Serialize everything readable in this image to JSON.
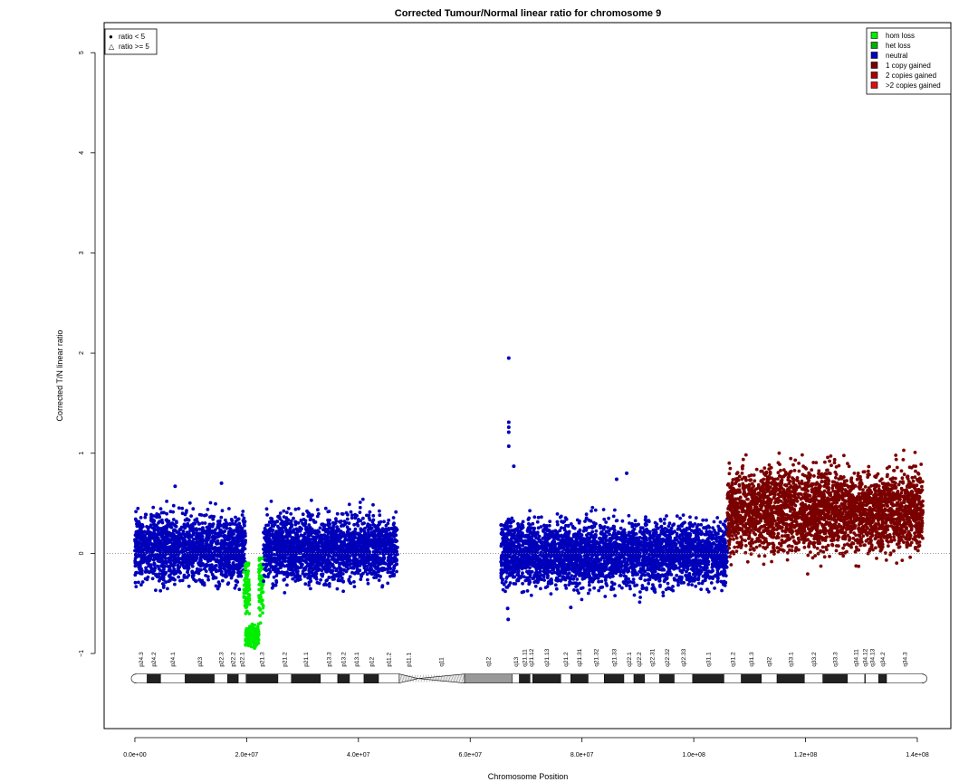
{
  "chart_data": {
    "type": "scatter",
    "title": "Corrected Tumour/Normal linear ratio for chromosome  9",
    "xlabel": "Chromosome Position",
    "ylabel": "Corrected T/N linear ratio",
    "xlim": [
      -5500000,
      146000000
    ],
    "ylim": [
      -1.75,
      5.3
    ],
    "x_ticks": [
      0,
      20000000,
      40000000,
      60000000,
      80000000,
      100000000,
      120000000,
      140000000
    ],
    "x_tick_labels": [
      "0.0e+00",
      "2.0e+07",
      "4.0e+07",
      "6.0e+07",
      "8.0e+07",
      "1.0e+08",
      "1.2e+08",
      "1.4e+08"
    ],
    "y_ticks": [
      -1,
      0,
      1,
      2,
      3,
      4,
      5
    ],
    "y_tick_labels": [
      "−1",
      "0",
      "1",
      "2",
      "3",
      "4",
      "5"
    ],
    "reference_line_y": 0,
    "shape_legend": {
      "placement": "top-left",
      "entries": [
        {
          "symbol": "●",
          "label": "ratio < 5"
        },
        {
          "symbol": "△",
          "label": "ratio >= 5"
        }
      ]
    },
    "legend": {
      "placement": "top-right",
      "entries": [
        {
          "label": "hom loss",
          "color": "#00ee00"
        },
        {
          "label": "het loss",
          "color": "#00b000"
        },
        {
          "label": "neutral",
          "color": "#0000bb"
        },
        {
          "label": "1 copy gained",
          "color": "#7a0000"
        },
        {
          "label": "2 copies gained",
          "color": "#aa0000"
        },
        {
          "label": ">2 copies gained",
          "color": "#dd1010"
        }
      ]
    },
    "series": [
      {
        "name": "neutral",
        "color": "#0000bb",
        "x_start": 0,
        "x_end": 19800000,
        "mean": 0.05,
        "spread": 0.16,
        "min": -0.45,
        "max": 0.7
      },
      {
        "name": "hom loss",
        "color": "#00ee00",
        "x_start": 19500000,
        "x_end": 20500000,
        "mean": -0.35,
        "spread": 0.15,
        "min": -0.62,
        "max": -0.1
      },
      {
        "name": "hom loss",
        "color": "#00ee00",
        "x_start": 19800000,
        "x_end": 22200000,
        "mean": -0.82,
        "spread": 0.05,
        "min": -0.95,
        "max": -0.65
      },
      {
        "name": "hom loss",
        "color": "#00ee00",
        "x_start": 22200000,
        "x_end": 23000000,
        "mean": -0.3,
        "spread": 0.15,
        "min": -0.7,
        "max": -0.05
      },
      {
        "name": "neutral",
        "color": "#0000bb",
        "x_start": 23000000,
        "x_end": 47000000,
        "mean": 0.05,
        "spread": 0.16,
        "min": -0.5,
        "max": 0.65
      },
      {
        "name": "neutral",
        "color": "#0000bb",
        "x_start": 65500000,
        "x_end": 106000000,
        "mean": 0.0,
        "spread": 0.16,
        "min": -0.55,
        "max": 0.8
      },
      {
        "name": "1 copy gained",
        "color": "#7a0000",
        "x_start": 106000000,
        "x_end": 141000000,
        "mean": 0.43,
        "spread": 0.2,
        "min": -0.3,
        "max": 1.32
      }
    ],
    "outliers": [
      {
        "x": 66900000,
        "y": 1.95,
        "color": "#0000bb"
      },
      {
        "x": 66900000,
        "y": 1.31,
        "color": "#0000bb"
      },
      {
        "x": 66900000,
        "y": 1.26,
        "color": "#0000bb"
      },
      {
        "x": 66900000,
        "y": 1.21,
        "color": "#0000bb"
      },
      {
        "x": 66900000,
        "y": 1.07,
        "color": "#0000bb"
      },
      {
        "x": 67800000,
        "y": 0.87,
        "color": "#0000bb"
      },
      {
        "x": 66800000,
        "y": -0.66,
        "color": "#0000bb"
      },
      {
        "x": 66700000,
        "y": -0.55,
        "color": "#0000bb"
      },
      {
        "x": 88000000,
        "y": 0.8,
        "color": "#0000bb"
      },
      {
        "x": 86200000,
        "y": 0.74,
        "color": "#0000bb"
      },
      {
        "x": 15500000,
        "y": 0.7,
        "color": "#0000bb"
      },
      {
        "x": 7200000,
        "y": 0.67,
        "color": "#0000bb"
      },
      {
        "x": 78000000,
        "y": -0.54,
        "color": "#0000bb"
      }
    ],
    "ideogram": {
      "y_center": -1.25,
      "bands": [
        {
          "name": "p24.3",
          "start": 0,
          "end": 2200000,
          "stain": "gneg"
        },
        {
          "name": "p24.2",
          "start": 2200000,
          "end": 4600000,
          "stain": "gpos"
        },
        {
          "name": "p24.1",
          "start": 4600000,
          "end": 9000000,
          "stain": "gneg"
        },
        {
          "name": "p23",
          "start": 9000000,
          "end": 14200000,
          "stain": "gpos"
        },
        {
          "name": "p22.3",
          "start": 14200000,
          "end": 16600000,
          "stain": "gneg"
        },
        {
          "name": "p22.2",
          "start": 16600000,
          "end": 18500000,
          "stain": "gpos"
        },
        {
          "name": "p22.1",
          "start": 18500000,
          "end": 19900000,
          "stain": "gneg"
        },
        {
          "name": "p21.3",
          "start": 19900000,
          "end": 25600000,
          "stain": "gpos"
        },
        {
          "name": "p21.2",
          "start": 25600000,
          "end": 28000000,
          "stain": "gneg"
        },
        {
          "name": "p21.1",
          "start": 28000000,
          "end": 33200000,
          "stain": "gpos"
        },
        {
          "name": "p13.3",
          "start": 33200000,
          "end": 36300000,
          "stain": "gneg"
        },
        {
          "name": "p13.2",
          "start": 36300000,
          "end": 38400000,
          "stain": "gpos"
        },
        {
          "name": "p13.1",
          "start": 38400000,
          "end": 41000000,
          "stain": "gneg"
        },
        {
          "name": "p12",
          "start": 41000000,
          "end": 43600000,
          "stain": "gpos"
        },
        {
          "name": "p11.2",
          "start": 43600000,
          "end": 47300000,
          "stain": "gneg"
        },
        {
          "name": "p11.1",
          "start": 47300000,
          "end": 50700000,
          "stain": "acen"
        },
        {
          "name": "q11",
          "start": 50700000,
          "end": 59000000,
          "stain": "acen"
        },
        {
          "name": "q12",
          "start": 59000000,
          "end": 67500000,
          "stain": "gvar"
        },
        {
          "name": "q13",
          "start": 67500000,
          "end": 68800000,
          "stain": "gneg"
        },
        {
          "name": "q21.11",
          "start": 68800000,
          "end": 70700000,
          "stain": "gpos"
        },
        {
          "name": "q21.12",
          "start": 70700000,
          "end": 71200000,
          "stain": "gneg"
        },
        {
          "name": "q21.13",
          "start": 71200000,
          "end": 76200000,
          "stain": "gpos"
        },
        {
          "name": "q21.2",
          "start": 76200000,
          "end": 78000000,
          "stain": "gneg"
        },
        {
          "name": "q21.31",
          "start": 78000000,
          "end": 81100000,
          "stain": "gpos"
        },
        {
          "name": "q21.32",
          "start": 81100000,
          "end": 84000000,
          "stain": "gneg"
        },
        {
          "name": "q21.33",
          "start": 84000000,
          "end": 87500000,
          "stain": "gpos"
        },
        {
          "name": "q22.1",
          "start": 87500000,
          "end": 89300000,
          "stain": "gneg"
        },
        {
          "name": "q22.2",
          "start": 89300000,
          "end": 91200000,
          "stain": "gpos"
        },
        {
          "name": "q22.31",
          "start": 91200000,
          "end": 93900000,
          "stain": "gneg"
        },
        {
          "name": "q22.32",
          "start": 93900000,
          "end": 96500000,
          "stain": "gpos"
        },
        {
          "name": "q22.33",
          "start": 96500000,
          "end": 99800000,
          "stain": "gneg"
        },
        {
          "name": "q31.1",
          "start": 99800000,
          "end": 105400000,
          "stain": "gpos"
        },
        {
          "name": "q31.2",
          "start": 105400000,
          "end": 108500000,
          "stain": "gneg"
        },
        {
          "name": "q31.3",
          "start": 108500000,
          "end": 112100000,
          "stain": "gpos"
        },
        {
          "name": "q32",
          "start": 112100000,
          "end": 114900000,
          "stain": "gneg"
        },
        {
          "name": "q33.1",
          "start": 114900000,
          "end": 119800000,
          "stain": "gpos"
        },
        {
          "name": "q33.2",
          "start": 119800000,
          "end": 123100000,
          "stain": "gneg"
        },
        {
          "name": "q33.3",
          "start": 123100000,
          "end": 127500000,
          "stain": "gpos"
        },
        {
          "name": "q34.11",
          "start": 127500000,
          "end": 130600000,
          "stain": "gneg"
        },
        {
          "name": "q34.12",
          "start": 130600000,
          "end": 130700000,
          "stain": "gpos"
        },
        {
          "name": "q34.13",
          "start": 130700000,
          "end": 133100000,
          "stain": "gneg"
        },
        {
          "name": "q34.2",
          "start": 133100000,
          "end": 134500000,
          "stain": "gpos"
        },
        {
          "name": "q34.3",
          "start": 134500000,
          "end": 141100000,
          "stain": "gneg"
        }
      ]
    }
  }
}
